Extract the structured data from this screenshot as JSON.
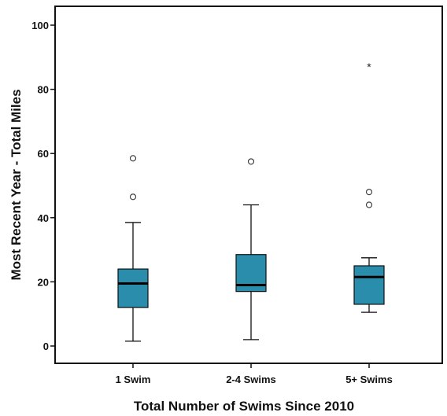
{
  "chart_data": {
    "type": "boxplot",
    "title": "",
    "xlabel": "Total Number of Swims Since 2010",
    "ylabel": "Most Recent Year - Total Miles",
    "ylim": [
      -5,
      105
    ],
    "yticks": [
      0,
      20,
      40,
      60,
      80,
      100
    ],
    "grid": false,
    "box_color": "#2a8dab",
    "categories": [
      "1 Swim",
      "2-4 Swims",
      "5+ Swims"
    ],
    "series": [
      {
        "category": "1 Swim",
        "whisker_low": 1.5,
        "q1": 12,
        "median": 19.5,
        "q3": 24,
        "whisker_high": 38.5,
        "outliers": [
          46.5,
          58.5
        ],
        "extremes": []
      },
      {
        "category": "2-4 Swims",
        "whisker_low": 2,
        "q1": 17,
        "median": 19,
        "q3": 28.5,
        "whisker_high": 44,
        "outliers": [
          57.5
        ],
        "extremes": []
      },
      {
        "category": "5+ Swims",
        "whisker_low": 10.5,
        "q1": 13,
        "median": 21.5,
        "q3": 25,
        "whisker_high": 27.5,
        "outliers": [
          44,
          48
        ],
        "extremes": [
          87
        ]
      }
    ]
  }
}
